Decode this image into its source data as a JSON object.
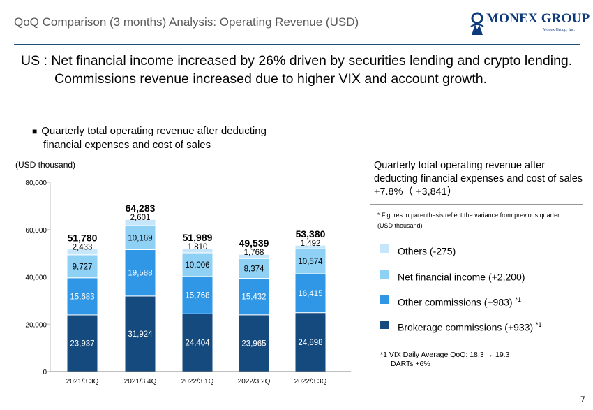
{
  "header": {
    "title": "QoQ Comparison (3 months) Analysis: Operating Revenue (USD)",
    "logo_text": "MONEX GROUP",
    "logo_sub": "Monex Group, Inc."
  },
  "headline": "US : Net financial income increased by 26% driven by securities lending and crypto lending. Commissions revenue increased due to higher VIX and account growth.",
  "subhead": {
    "bullet": "■",
    "line1": "Quarterly total operating revenue after deducting",
    "line2": "financial expenses and cost of sales"
  },
  "unit_left": "(USD thousand)",
  "right_panel": {
    "title": "Quarterly total operating revenue after deducting financial expenses and cost of sales　+7.8%（ +3,841）",
    "note": "* Figures in parenthesis reflect the variance from previous quarter",
    "unit": "(USD thousand)",
    "legend": [
      {
        "label": "Others (-275)",
        "sup": "",
        "color": "#c6e7fb"
      },
      {
        "label": "Net financial income (+2,200)",
        "sup": "",
        "color": "#8fd0f5"
      },
      {
        "label": "Other commissions (+983) ",
        "sup": "*1",
        "color": "#2f97e6"
      },
      {
        "label": "Brokerage commissions (+933) ",
        "sup": "*1",
        "color": "#144a7e"
      }
    ],
    "footnote_line1": "*1 VIX Daily Average QoQ: 18.3 → 19.3",
    "footnote_line2": "DARTs +6%"
  },
  "page_number": "7",
  "chart_data": {
    "type": "bar",
    "stacked": true,
    "categories": [
      "2021/3 3Q",
      "2021/3 4Q",
      "2022/3 1Q",
      "2022/3 2Q",
      "2022/3 3Q"
    ],
    "series": [
      {
        "name": "Brokerage commissions",
        "color": "#144a7e",
        "label_color": "#ffffff",
        "values": [
          23937,
          31924,
          24404,
          23965,
          24898
        ],
        "labels": [
          "23,937",
          "31,924",
          "24,404",
          "23,965",
          "24,898"
        ]
      },
      {
        "name": "Other commissions",
        "color": "#2f97e6",
        "label_color": "#ffffff",
        "values": [
          15683,
          19588,
          15768,
          15432,
          16415
        ],
        "labels": [
          "15,683",
          "19,588",
          "15,768",
          "15,432",
          "16,415"
        ]
      },
      {
        "name": "Net financial income",
        "color": "#8fd0f5",
        "label_color": "#000000",
        "values": [
          9727,
          10169,
          10006,
          8374,
          10574
        ],
        "labels": [
          "9,727",
          "10,169",
          "10,006",
          "8,374",
          "10,574"
        ]
      },
      {
        "name": "Others",
        "color": "#c6e7fb",
        "label_color": "#000000",
        "values": [
          2433,
          2601,
          1810,
          1768,
          1492
        ],
        "labels": [
          "2,433",
          "2,601",
          "1,810",
          "1,768",
          "1,492"
        ]
      }
    ],
    "totals": [
      51780,
      64283,
      51989,
      49539,
      53380
    ],
    "total_labels": [
      "51,780",
      "64,283",
      "51,989",
      "49,539",
      "53,380"
    ],
    "ylim": [
      0,
      80000
    ],
    "yticks": [
      0,
      20000,
      40000,
      60000,
      80000
    ],
    "ytick_labels": [
      "0",
      "20,000",
      "40,000",
      "60,000",
      "80,000"
    ],
    "ylabel": "(USD thousand)",
    "xlabel": "",
    "legend_position": "right"
  }
}
